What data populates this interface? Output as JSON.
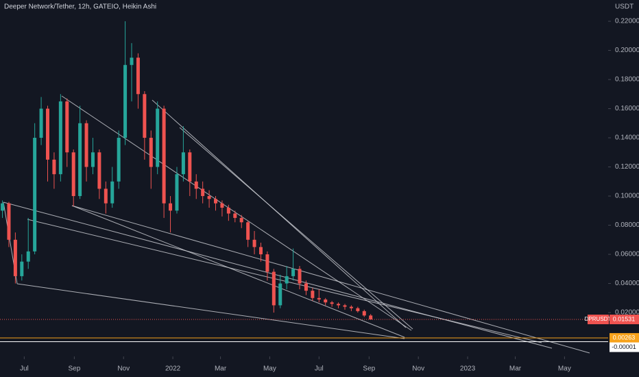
{
  "chart_data": {
    "type": "candlestick",
    "title": "Deeper Network/Tether, 12h, GATEIO, Heikin Ashi",
    "y_axis_label": "USDT",
    "up_color": "#26a69a",
    "down_color": "#ef5350",
    "grid": false,
    "xlim": [
      -30,
      723
    ],
    "ylim": [
      -0.0101,
      0.2346
    ],
    "xticks": [
      {
        "value": 0,
        "label": "Jul"
      },
      {
        "value": 62,
        "label": "Sep"
      },
      {
        "value": 123,
        "label": "Nov"
      },
      {
        "value": 184,
        "label": "2022"
      },
      {
        "value": 243,
        "label": "Mar"
      },
      {
        "value": 304,
        "label": "May"
      },
      {
        "value": 365,
        "label": "Jul"
      },
      {
        "value": 427,
        "label": "Sep"
      },
      {
        "value": 488,
        "label": "Nov"
      },
      {
        "value": 549,
        "label": "2023"
      },
      {
        "value": 608,
        "label": "Mar"
      },
      {
        "value": 669,
        "label": "May"
      }
    ],
    "yticks": [
      {
        "value": 0.02,
        "label": "0.02000"
      },
      {
        "value": 0.04,
        "label": "0.04000"
      },
      {
        "value": 0.06,
        "label": "0.06000"
      },
      {
        "value": 0.08,
        "label": "0.08000"
      },
      {
        "value": 0.1,
        "label": "0.10000"
      },
      {
        "value": 0.12,
        "label": "0.12000"
      },
      {
        "value": 0.14,
        "label": "0.14000"
      },
      {
        "value": 0.16,
        "label": "0.16000"
      },
      {
        "value": 0.18,
        "label": "0.18000"
      },
      {
        "value": 0.2,
        "label": "0.20000"
      },
      {
        "value": 0.22,
        "label": "0.22000"
      }
    ],
    "x": [
      -27,
      -19,
      -11,
      -3,
      5,
      13,
      21,
      29,
      37,
      45,
      53,
      61,
      69,
      77,
      85,
      93,
      101,
      109,
      117,
      125,
      133,
      141,
      149,
      157,
      165,
      173,
      181,
      189,
      197,
      205,
      213,
      221,
      229,
      237,
      245,
      253,
      261,
      269,
      277,
      285,
      293,
      301,
      309,
      317,
      325,
      333,
      341,
      349,
      357,
      365,
      373,
      381,
      389,
      397,
      405,
      413,
      421,
      429
    ],
    "open": [
      0.09,
      0.095,
      0.07,
      0.045,
      0.055,
      0.062,
      0.14,
      0.16,
      0.125,
      0.115,
      0.165,
      0.13,
      0.1,
      0.15,
      0.12,
      0.13,
      0.105,
      0.095,
      0.11,
      0.14,
      0.19,
      0.195,
      0.17,
      0.14,
      0.12,
      0.16,
      0.095,
      0.09,
      0.115,
      0.13,
      0.11,
      0.105,
      0.1,
      0.098,
      0.095,
      0.092,
      0.088,
      0.085,
      0.082,
      0.07,
      0.065,
      0.06,
      0.048,
      0.025,
      0.04,
      0.045,
      0.05,
      0.04,
      0.035,
      0.03,
      0.029,
      0.027,
      0.026,
      0.025,
      0.024,
      0.023,
      0.021,
      0.018
    ],
    "high": [
      0.097,
      0.096,
      0.075,
      0.06,
      0.085,
      0.15,
      0.168,
      0.162,
      0.13,
      0.17,
      0.167,
      0.132,
      0.162,
      0.152,
      0.14,
      0.132,
      0.11,
      0.12,
      0.145,
      0.22,
      0.205,
      0.198,
      0.172,
      0.145,
      0.165,
      0.162,
      0.1,
      0.12,
      0.148,
      0.132,
      0.115,
      0.11,
      0.104,
      0.1,
      0.097,
      0.094,
      0.09,
      0.087,
      0.083,
      0.076,
      0.068,
      0.062,
      0.05,
      0.046,
      0.052,
      0.064,
      0.052,
      0.042,
      0.037,
      0.036,
      0.03,
      0.028,
      0.027,
      0.026,
      0.025,
      0.024,
      0.022,
      0.019
    ],
    "low": [
      0.085,
      0.065,
      0.04,
      0.042,
      0.05,
      0.06,
      0.135,
      0.11,
      0.105,
      0.11,
      0.12,
      0.093,
      0.098,
      0.11,
      0.115,
      0.098,
      0.088,
      0.092,
      0.105,
      0.135,
      0.165,
      0.16,
      0.125,
      0.105,
      0.115,
      0.085,
      0.075,
      0.088,
      0.11,
      0.1,
      0.098,
      0.095,
      0.092,
      0.09,
      0.086,
      0.083,
      0.082,
      0.078,
      0.065,
      0.06,
      0.055,
      0.042,
      0.02,
      0.023,
      0.036,
      0.042,
      0.036,
      0.032,
      0.028,
      0.027,
      0.025,
      0.024,
      0.023,
      0.022,
      0.021,
      0.02,
      0.017,
      0.015
    ],
    "close": [
      0.095,
      0.07,
      0.045,
      0.055,
      0.062,
      0.14,
      0.16,
      0.125,
      0.115,
      0.165,
      0.13,
      0.1,
      0.15,
      0.12,
      0.13,
      0.105,
      0.095,
      0.11,
      0.14,
      0.19,
      0.195,
      0.17,
      0.14,
      0.12,
      0.16,
      0.095,
      0.09,
      0.115,
      0.13,
      0.11,
      0.105,
      0.1,
      0.098,
      0.095,
      0.092,
      0.088,
      0.085,
      0.082,
      0.07,
      0.065,
      0.06,
      0.048,
      0.025,
      0.04,
      0.045,
      0.05,
      0.04,
      0.035,
      0.03,
      0.029,
      0.027,
      0.026,
      0.025,
      0.024,
      0.023,
      0.021,
      0.018,
      0.0153
    ],
    "price_lines": [
      {
        "name": "DPRUSDT",
        "value": 0.01531,
        "color": "#ef5350"
      },
      {
        "value": 0.00263,
        "color": "#f7a21b"
      },
      {
        "value": -1e-05,
        "color": "#ffffff"
      }
    ]
  }
}
